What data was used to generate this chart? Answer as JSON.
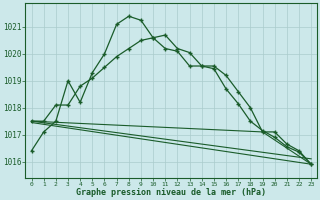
{
  "xlabel": "Graphe pression niveau de la mer (hPa)",
  "background_color": "#cce8ea",
  "grid_color": "#aacccc",
  "line_color": "#1a5c2a",
  "x_ticks": [
    0,
    1,
    2,
    3,
    4,
    5,
    6,
    7,
    8,
    9,
    10,
    11,
    12,
    13,
    14,
    15,
    16,
    17,
    18,
    19,
    20,
    21,
    22,
    23
  ],
  "ylim": [
    1015.4,
    1021.9
  ],
  "yticks": [
    1016,
    1017,
    1018,
    1019,
    1020,
    1021
  ],
  "series1": [
    1016.4,
    1017.1,
    1017.5,
    1019.0,
    1018.2,
    1019.3,
    1020.0,
    1021.1,
    1021.4,
    1021.25,
    1020.6,
    1020.2,
    1020.1,
    1019.55,
    1019.55,
    1019.55,
    1019.2,
    1018.6,
    1018.0,
    1017.1,
    1017.1,
    1016.65,
    1016.4,
    1015.9
  ],
  "series2": [
    1017.5,
    1017.5,
    1018.1,
    1018.1,
    1018.8,
    1019.1,
    1019.5,
    1019.9,
    1020.2,
    1020.5,
    1020.6,
    1020.7,
    1020.2,
    1020.05,
    1019.55,
    1019.45,
    1018.7,
    1018.15,
    1017.5,
    1017.15,
    1016.9,
    1016.55,
    1016.35,
    1015.9
  ],
  "series3_x": [
    0,
    23
  ],
  "series3_y": [
    1017.5,
    1016.1
  ],
  "series4_x": [
    0,
    19,
    23
  ],
  "series4_y": [
    1017.5,
    1017.1,
    1015.9
  ],
  "series5_x": [
    0,
    23
  ],
  "series5_y": [
    1017.45,
    1015.9
  ]
}
